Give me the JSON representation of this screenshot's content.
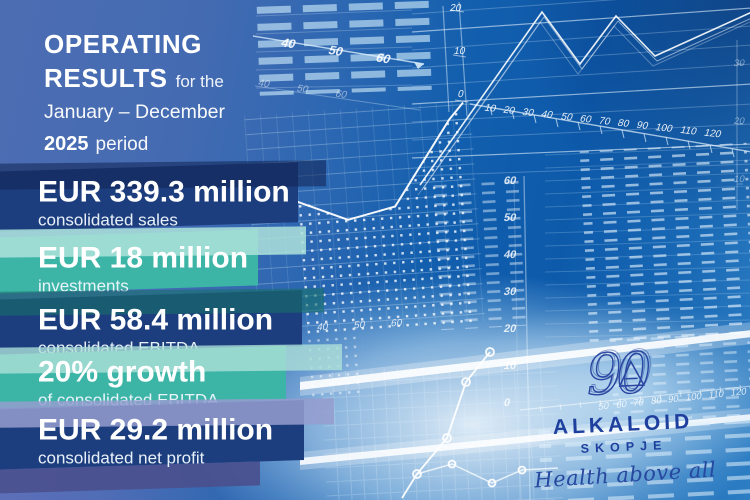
{
  "title": {
    "word1": "OPERATING",
    "word2": "RESULTS",
    "suffix": "for the",
    "date_range": "January – December",
    "year": "2025",
    "period_word": "period"
  },
  "banners": [
    {
      "value": "EUR 339.3 million",
      "label": "consolidated sales"
    },
    {
      "value": "EUR 18 million",
      "label": "investments"
    },
    {
      "value": "EUR 58.4 million",
      "label": "consolidated EBITDA"
    },
    {
      "value": "20% growth",
      "label": "of consolidated EBITDA"
    },
    {
      "value": "EUR 29.2 million",
      "label": "consolidated net profit"
    }
  ],
  "logo": {
    "anniversary_number": "90",
    "company": "ALKALOID",
    "city": "SKOPJE",
    "slogan": "Health above all"
  },
  "background_chart": {
    "x_axis_labels": [
      "10",
      "20",
      "30",
      "40",
      "50",
      "60",
      "70",
      "80",
      "90",
      "100",
      "110",
      "120"
    ],
    "top_y_axis_labels": [
      "20",
      "10",
      "0"
    ],
    "upper_scale_labels": [
      "40",
      "50",
      "60"
    ],
    "lower_scale_labels": [
      "40",
      "50",
      "60"
    ],
    "mid_scale_labels": [
      "40",
      "50",
      "60"
    ],
    "right_y_axis_labels": [
      "60",
      "50",
      "40",
      "30",
      "20",
      "10",
      "0"
    ],
    "logo_scale_labels": [
      "50",
      "60",
      "70",
      "80",
      "90",
      "100",
      "110",
      "120"
    ],
    "edge_scale_labels": [
      "30",
      "20",
      "10"
    ]
  },
  "colors": {
    "navy_banner": "#1d3e7e",
    "teal_banner": "#3cb5a7",
    "logo_blue": "#1e3f9d",
    "background_left": "#4c6cb1",
    "background_right": "#0d5aab",
    "light_wedge_teal": "#aadfd6",
    "indigo_wedge": "#4b508e"
  }
}
